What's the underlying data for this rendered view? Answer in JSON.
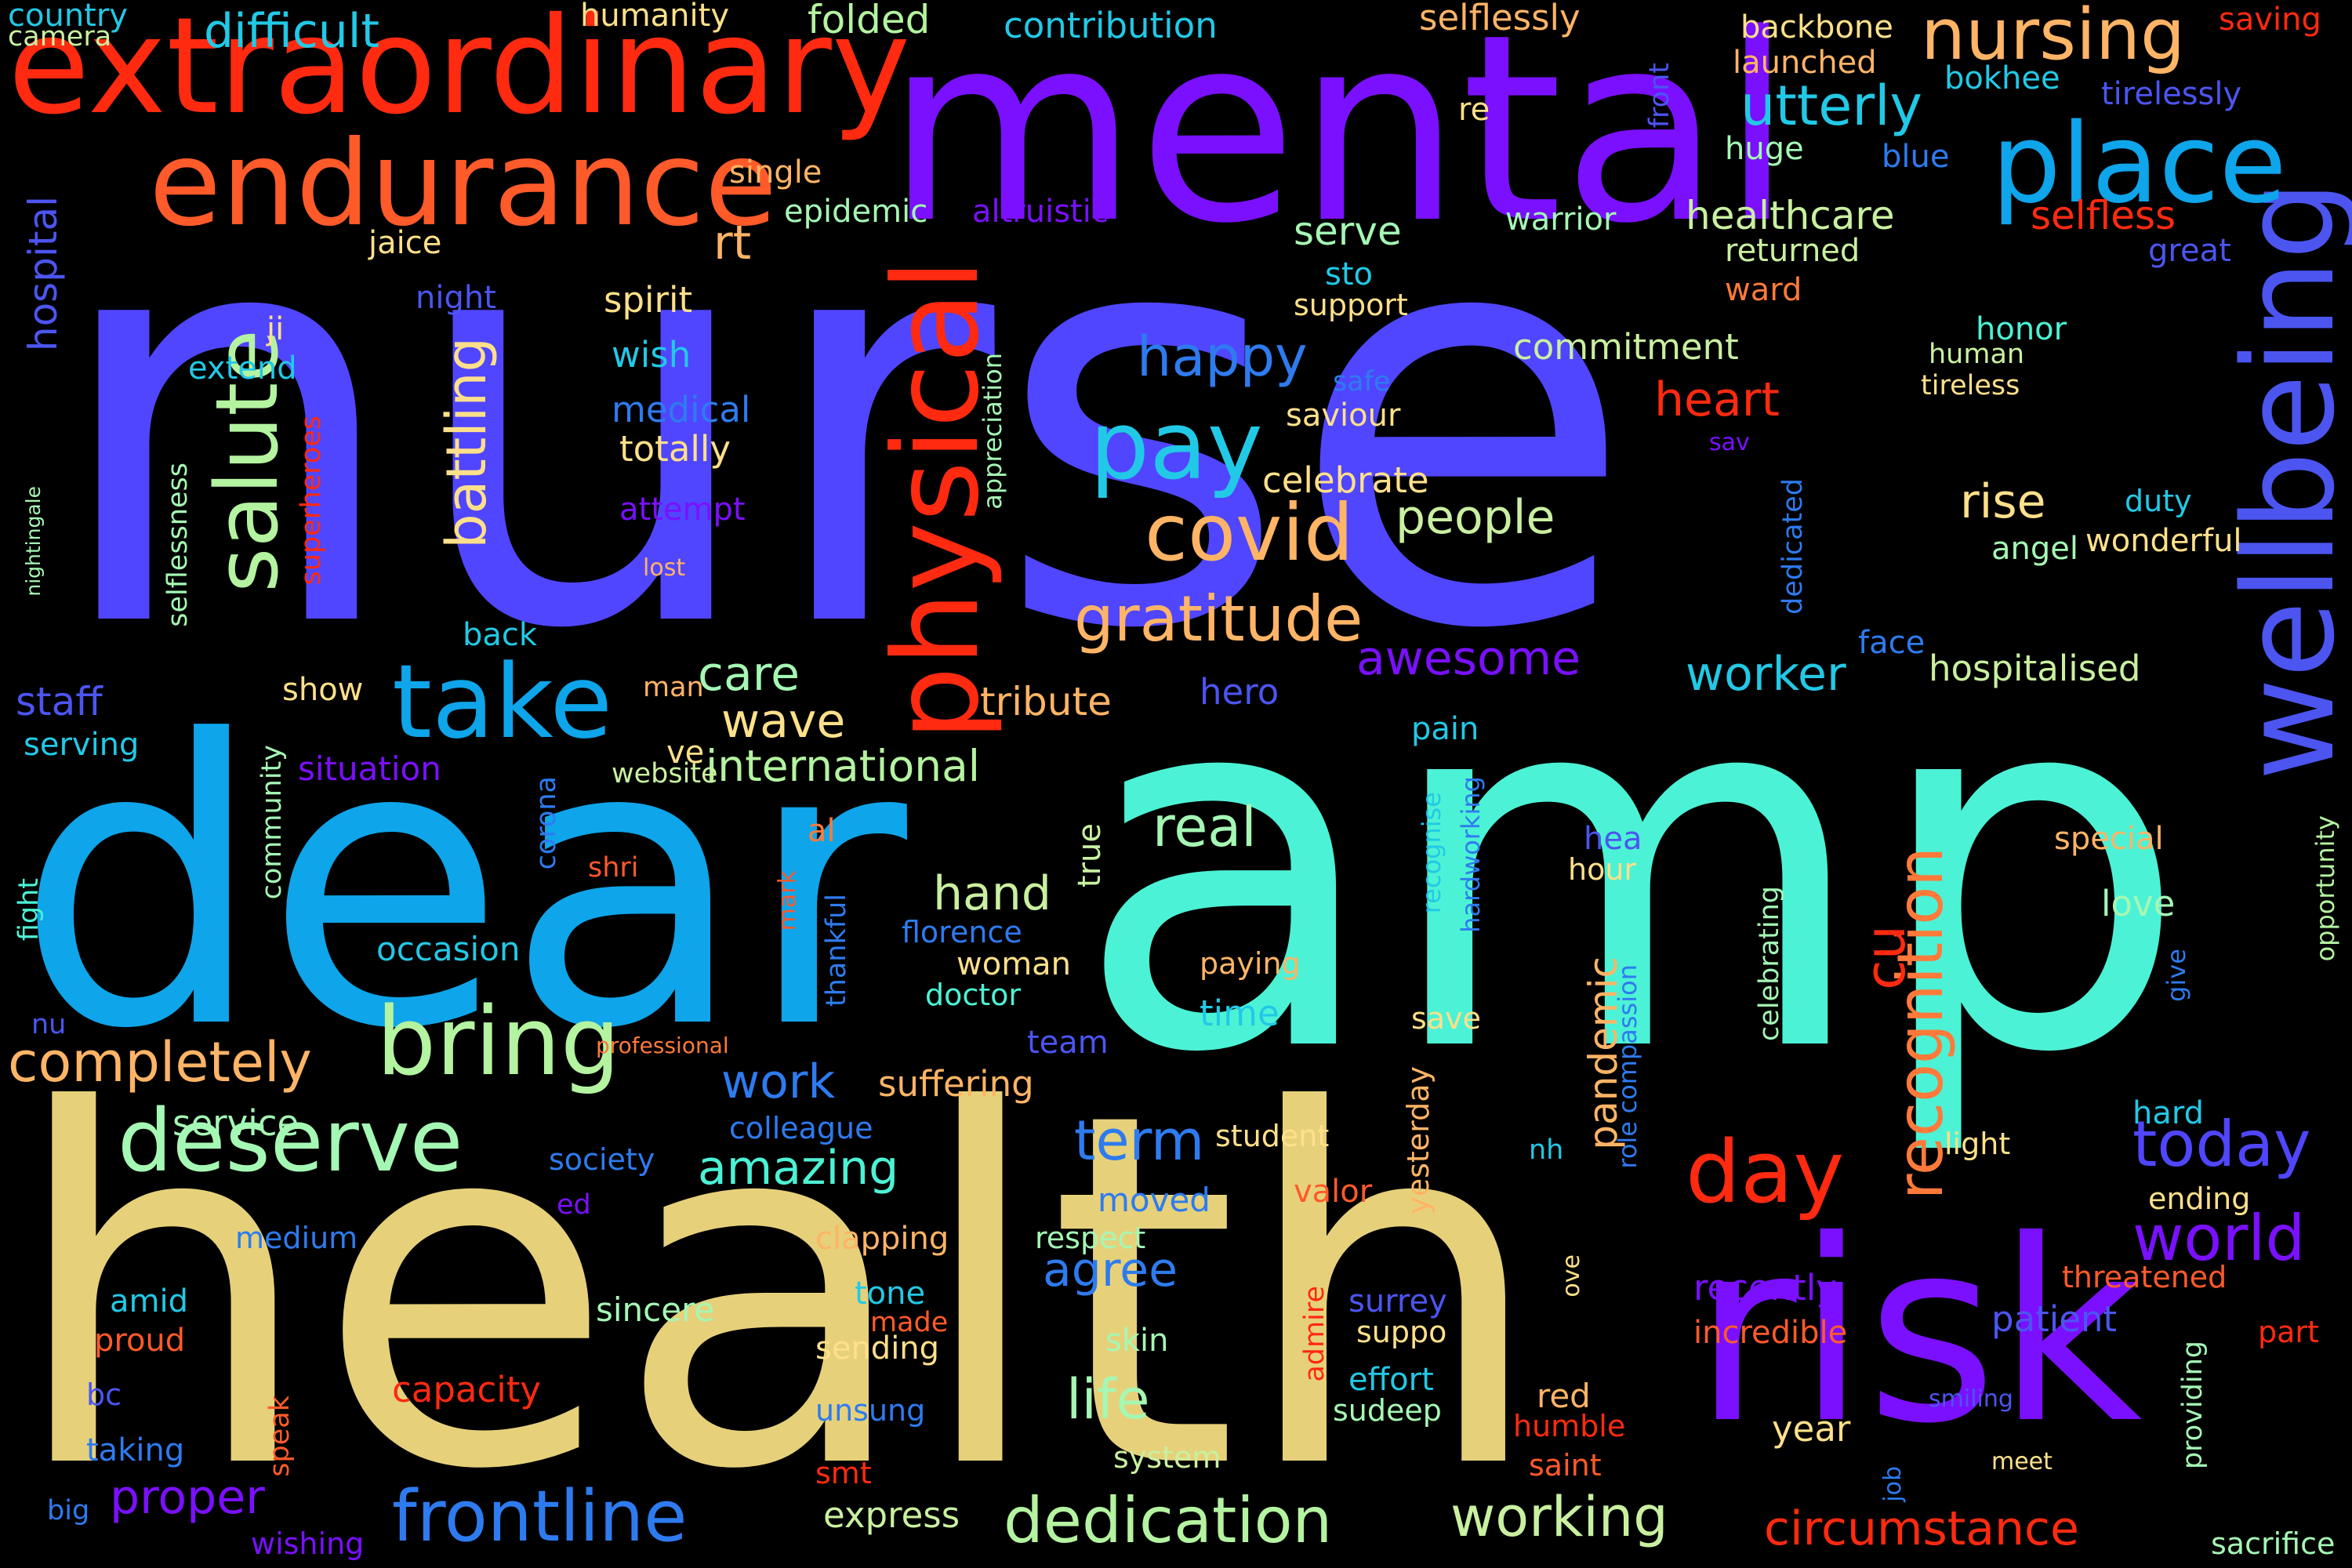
{
  "words": [
    {
      "text": "nurse",
      "color": "#5046FF"
    },
    {
      "text": "amp",
      "color": "#4CF2D5"
    },
    {
      "text": "health",
      "color": "#E6D17A"
    },
    {
      "text": "dear",
      "color": "#0EA5EA"
    },
    {
      "text": "mental",
      "color": "#7A10FF"
    },
    {
      "text": "risk",
      "color": "#7A10FF"
    },
    {
      "text": "extraordinary",
      "color": "#FF2A10"
    },
    {
      "text": "endurance",
      "color": "#FF5A2A"
    },
    {
      "text": "wellbeing",
      "color": "#4C55F0"
    },
    {
      "text": "physical",
      "color": "#FF2A10"
    },
    {
      "text": "place",
      "color": "#0EA5EA"
    },
    {
      "text": "bring",
      "color": "#B4F3A0"
    },
    {
      "text": "take",
      "color": "#0EA5EA"
    },
    {
      "text": "day",
      "color": "#FF2A10"
    },
    {
      "text": "deserve",
      "color": "#A5F7B4"
    },
    {
      "text": "salute",
      "color": "#B4F3A0"
    },
    {
      "text": "covid",
      "color": "#FFB466"
    },
    {
      "text": "pay",
      "color": "#22C9E6"
    },
    {
      "text": "gratitude",
      "color": "#FFB466"
    },
    {
      "text": "nursing",
      "color": "#FFB466"
    },
    {
      "text": "recognition",
      "color": "#FF7A3A"
    },
    {
      "text": "dedication",
      "color": "#B4F3A0"
    },
    {
      "text": "frontline",
      "color": "#2E7BEF"
    },
    {
      "text": "today",
      "color": "#5046FF"
    },
    {
      "text": "world",
      "color": "#7A10FF"
    },
    {
      "text": "utterly",
      "color": "#22C9E6"
    },
    {
      "text": "completely",
      "color": "#FFB466"
    },
    {
      "text": "battling",
      "color": "#FFE08A"
    },
    {
      "text": "real",
      "color": "#A5F7B4"
    },
    {
      "text": "hand",
      "color": "#C9F0A0"
    },
    {
      "text": "happy",
      "color": "#2E7BEF"
    },
    {
      "text": "awesome",
      "color": "#7A10FF"
    },
    {
      "text": "worker",
      "color": "#22C9E6"
    },
    {
      "text": "work",
      "color": "#2E7BEF"
    },
    {
      "text": "agree",
      "color": "#2E7BEF"
    },
    {
      "text": "life",
      "color": "#A5F7B4"
    },
    {
      "text": "working",
      "color": "#C9F0A0"
    },
    {
      "text": "amazing",
      "color": "#4CF2D5"
    },
    {
      "text": "term",
      "color": "#2E7BEF"
    },
    {
      "text": "circumstance",
      "color": "#FF2A10"
    },
    {
      "text": "proper",
      "color": "#7A10FF"
    },
    {
      "text": "people",
      "color": "#C9F0A0"
    },
    {
      "text": "care",
      "color": "#A5F7B4"
    },
    {
      "text": "wave",
      "color": "#FFE08A"
    },
    {
      "text": "international",
      "color": "#B4F3A0"
    },
    {
      "text": "heart",
      "color": "#FF2A10"
    },
    {
      "text": "rise",
      "color": "#FFE08A"
    },
    {
      "text": "rt",
      "color": "#FFB466"
    },
    {
      "text": "cu",
      "color": "#FF2A10"
    },
    {
      "text": "pandemic",
      "color": "#FFB466"
    },
    {
      "text": "hospital",
      "color": "#4C55F0"
    },
    {
      "text": "healthcare",
      "color": "#C9F0A0"
    },
    {
      "text": "selfless",
      "color": "#FF2A10"
    },
    {
      "text": "serve",
      "color": "#A5F7B4"
    },
    {
      "text": "hospitalised",
      "color": "#C9F0A0"
    },
    {
      "text": "difficult",
      "color": "#22C9E6"
    },
    {
      "text": "folded",
      "color": "#B4F3A0"
    },
    {
      "text": "humanity",
      "color": "#FFE08A"
    },
    {
      "text": "contribution",
      "color": "#22C9E6"
    },
    {
      "text": "selflessly",
      "color": "#FFB466"
    },
    {
      "text": "backbone",
      "color": "#FFE08A"
    },
    {
      "text": "launched",
      "color": "#FFB466"
    },
    {
      "text": "saving",
      "color": "#FF2A10"
    },
    {
      "text": "bokhee",
      "color": "#22C9E6"
    },
    {
      "text": "tirelessly",
      "color": "#4C55F0"
    },
    {
      "text": "blue",
      "color": "#2E7BEF"
    },
    {
      "text": "huge",
      "color": "#A5F7B4"
    },
    {
      "text": "front",
      "color": "#4C55F0"
    },
    {
      "text": "re",
      "color": "#FFE08A"
    },
    {
      "text": "country",
      "color": "#22C9E6"
    },
    {
      "text": "camera",
      "color": "#C9F0A0"
    },
    {
      "text": "single",
      "color": "#FFB466"
    },
    {
      "text": "epidemic",
      "color": "#A5F7B4"
    },
    {
      "text": "altruistic",
      "color": "#7A10FF"
    },
    {
      "text": "warrior",
      "color": "#A5F7B4"
    },
    {
      "text": "returned",
      "color": "#C9F0A0"
    },
    {
      "text": "great",
      "color": "#4C55F0"
    },
    {
      "text": "jaice",
      "color": "#FFE08A"
    },
    {
      "text": "sto",
      "color": "#22C9E6"
    },
    {
      "text": "ward",
      "color": "#FF7A3A"
    },
    {
      "text": "night",
      "color": "#4C55F0"
    },
    {
      "text": "spirit",
      "color": "#FFE08A"
    },
    {
      "text": "support",
      "color": "#FFE08A"
    },
    {
      "text": "ji",
      "color": "#FFE08A"
    },
    {
      "text": "wish",
      "color": "#22C9E6"
    },
    {
      "text": "commitment",
      "color": "#C9F0A0"
    },
    {
      "text": "honor",
      "color": "#4CF2D5"
    },
    {
      "text": "human",
      "color": "#C9F0A0"
    },
    {
      "text": "tireless",
      "color": "#FFE08A"
    },
    {
      "text": "extend",
      "color": "#22C9E6"
    },
    {
      "text": "safe",
      "color": "#2E7BEF"
    },
    {
      "text": "medical",
      "color": "#2E7BEF"
    },
    {
      "text": "appreciation",
      "color": "#A5F7B4"
    },
    {
      "text": "saviour",
      "color": "#FFE08A"
    },
    {
      "text": "totally",
      "color": "#FFE08A"
    },
    {
      "text": "sav",
      "color": "#7A10FF"
    },
    {
      "text": "superheroes",
      "color": "#FF2A10"
    },
    {
      "text": "selflessness",
      "color": "#A5F7B4"
    },
    {
      "text": "celebrate",
      "color": "#FFE08A"
    },
    {
      "text": "dedicated",
      "color": "#2E7BEF"
    },
    {
      "text": "duty",
      "color": "#22C9E6"
    },
    {
      "text": "attempt",
      "color": "#7A10FF"
    },
    {
      "text": "wonderful",
      "color": "#FFE08A"
    },
    {
      "text": "angel",
      "color": "#A5F7B4"
    },
    {
      "text": "nightingale",
      "color": "#A5F7B4"
    },
    {
      "text": "lost",
      "color": "#FFB466"
    },
    {
      "text": "back",
      "color": "#22C9E6"
    },
    {
      "text": "face",
      "color": "#2E7BEF"
    },
    {
      "text": "staff",
      "color": "#4C55F0"
    },
    {
      "text": "show",
      "color": "#FFE08A"
    },
    {
      "text": "man",
      "color": "#FFB466"
    },
    {
      "text": "tribute",
      "color": "#FFB466"
    },
    {
      "text": "hero",
      "color": "#4C55F0"
    },
    {
      "text": "serving",
      "color": "#22C9E6"
    },
    {
      "text": "community",
      "color": "#A5F7B4"
    },
    {
      "text": "situation",
      "color": "#7A10FF"
    },
    {
      "text": "corona",
      "color": "#2E7BEF"
    },
    {
      "text": "ve",
      "color": "#FFE08A"
    },
    {
      "text": "website",
      "color": "#C9F0A0"
    },
    {
      "text": "pain",
      "color": "#22C9E6"
    },
    {
      "text": "al",
      "color": "#FF7A3A"
    },
    {
      "text": "true",
      "color": "#C9F0A0"
    },
    {
      "text": "recognise",
      "color": "#22C9E6"
    },
    {
      "text": "hardworking",
      "color": "#2E7BEF"
    },
    {
      "text": "hea",
      "color": "#4C55F0"
    },
    {
      "text": "hour",
      "color": "#FFE08A"
    },
    {
      "text": "special",
      "color": "#FFB466"
    },
    {
      "text": "love",
      "color": "#A5F7B4"
    },
    {
      "text": "fight",
      "color": "#4CF2D5"
    },
    {
      "text": "shri",
      "color": "#FF5A2A"
    },
    {
      "text": "mark",
      "color": "#FF5A2A"
    },
    {
      "text": "thankful",
      "color": "#2E7BEF"
    },
    {
      "text": "florence",
      "color": "#2E7BEF"
    },
    {
      "text": "occasion",
      "color": "#22C9E6"
    },
    {
      "text": "woman",
      "color": "#FFE08A"
    },
    {
      "text": "doctor",
      "color": "#4CF2D5"
    },
    {
      "text": "paying",
      "color": "#FFB466"
    },
    {
      "text": "time",
      "color": "#22C9E6"
    },
    {
      "text": "celebrating",
      "color": "#A5F7B4"
    },
    {
      "text": "give",
      "color": "#2E7BEF"
    },
    {
      "text": "opportunity",
      "color": "#B4F3A0"
    },
    {
      "text": "nu",
      "color": "#4C55F0"
    },
    {
      "text": "professional",
      "color": "#FF7A3A"
    },
    {
      "text": "team",
      "color": "#4C55F0"
    },
    {
      "text": "save",
      "color": "#FFE08A"
    },
    {
      "text": "compassion",
      "color": "#2E7BEF"
    },
    {
      "text": "suffering",
      "color": "#FFB466"
    },
    {
      "text": "service",
      "color": "#A5F7B4"
    },
    {
      "text": "colleague",
      "color": "#2E7BEF"
    },
    {
      "text": "society",
      "color": "#2E7BEF"
    },
    {
      "text": "student",
      "color": "#FFE08A"
    },
    {
      "text": "light",
      "color": "#FFE08A"
    },
    {
      "text": "hard",
      "color": "#22C9E6"
    },
    {
      "text": "role",
      "color": "#2E7BEF"
    },
    {
      "text": "nh",
      "color": "#22C9E6"
    },
    {
      "text": "ed",
      "color": "#7A10FF"
    },
    {
      "text": "moved",
      "color": "#2E7BEF"
    },
    {
      "text": "valor",
      "color": "#FF5A2A"
    },
    {
      "text": "yesterday",
      "color": "#FFB466"
    },
    {
      "text": "ending",
      "color": "#FFE08A"
    },
    {
      "text": "medium",
      "color": "#2E7BEF"
    },
    {
      "text": "clapping",
      "color": "#FFB466"
    },
    {
      "text": "respect",
      "color": "#A5F7B4"
    },
    {
      "text": "threatened",
      "color": "#FF5A2A"
    },
    {
      "text": "amid",
      "color": "#22C9E6"
    },
    {
      "text": "tone",
      "color": "#22C9E6"
    },
    {
      "text": "sincere",
      "color": "#A5F7B4"
    },
    {
      "text": "recently",
      "color": "#7A10FF"
    },
    {
      "text": "patient",
      "color": "#4C55F0"
    },
    {
      "text": "proud",
      "color": "#FF5A2A"
    },
    {
      "text": "made",
      "color": "#FF5A2A"
    },
    {
      "text": "surrey",
      "color": "#4C55F0"
    },
    {
      "text": "ove",
      "color": "#FFE08A"
    },
    {
      "text": "part",
      "color": "#FF2A10"
    },
    {
      "text": "sending",
      "color": "#FFE08A"
    },
    {
      "text": "skin",
      "color": "#A5F7B4"
    },
    {
      "text": "suppo",
      "color": "#FFE08A"
    },
    {
      "text": "incredible",
      "color": "#FF5A2A"
    },
    {
      "text": "admire",
      "color": "#FF2A10"
    },
    {
      "text": "bc",
      "color": "#4C55F0"
    },
    {
      "text": "speak",
      "color": "#FF5A2A"
    },
    {
      "text": "capacity",
      "color": "#FF2A10"
    },
    {
      "text": "effort",
      "color": "#22C9E6"
    },
    {
      "text": "red",
      "color": "#FFB466"
    },
    {
      "text": "providing",
      "color": "#A5F7B4"
    },
    {
      "text": "unsung",
      "color": "#2E7BEF"
    },
    {
      "text": "sudeep",
      "color": "#A5F7B4"
    },
    {
      "text": "humble",
      "color": "#FF2A10"
    },
    {
      "text": "smiling",
      "color": "#4C55F0"
    },
    {
      "text": "taking",
      "color": "#2E7BEF"
    },
    {
      "text": "year",
      "color": "#FFE08A"
    },
    {
      "text": "system",
      "color": "#C9F0A0"
    },
    {
      "text": "saint",
      "color": "#FF5A2A"
    },
    {
      "text": "meet",
      "color": "#FFE08A"
    },
    {
      "text": "job",
      "color": "#2E7BEF"
    },
    {
      "text": "smt",
      "color": "#FF2A10"
    },
    {
      "text": "big",
      "color": "#2E7BEF"
    },
    {
      "text": "express",
      "color": "#C9F0A0"
    },
    {
      "text": "wishing",
      "color": "#7A10FF"
    },
    {
      "text": "sacrifice",
      "color": "#A5F7B4"
    }
  ]
}
